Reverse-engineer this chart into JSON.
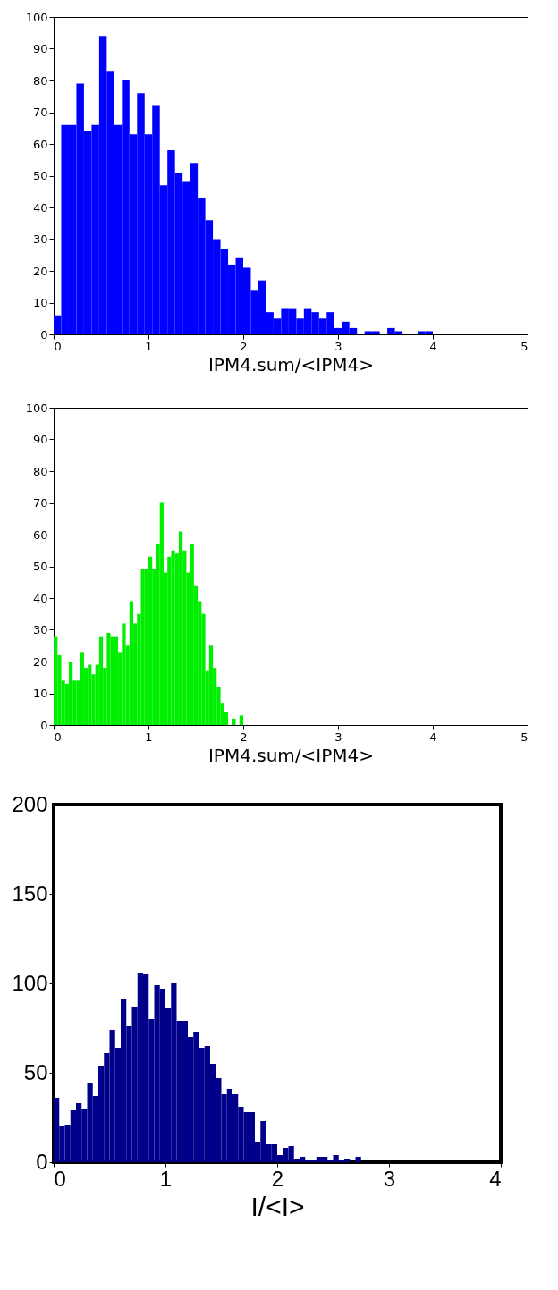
{
  "chart_data": [
    {
      "type": "histogram",
      "xlabel": "IPM4.sum/<IPM4>",
      "color": "#0000ff",
      "bins": [
        0,
        0.08,
        0.16,
        0.24,
        0.32,
        0.4,
        0.48,
        0.56,
        0.64,
        0.72,
        0.8,
        0.88,
        0.96,
        1.04,
        1.12,
        1.2,
        1.28,
        1.36,
        1.44,
        1.52,
        1.6,
        1.68,
        1.76,
        1.84,
        1.92,
        2.0,
        2.08,
        2.16,
        2.24,
        2.32,
        2.4,
        2.48,
        2.56,
        2.64,
        2.72,
        2.8,
        2.88,
        2.96,
        3.04,
        3.12,
        3.2,
        3.28,
        3.36,
        3.44,
        3.52,
        3.6,
        3.68,
        3.76,
        3.84,
        3.92,
        4.0
      ],
      "values": [
        6,
        66,
        66,
        79,
        64,
        66,
        94,
        83,
        66,
        80,
        63,
        76,
        63,
        72,
        47,
        58,
        51,
        48,
        54,
        43,
        36,
        30,
        27,
        22,
        24,
        21,
        14,
        17,
        7,
        5,
        8,
        8,
        5,
        8,
        7,
        5,
        7,
        2,
        4,
        2,
        0,
        1,
        1,
        0,
        2,
        1,
        0,
        0,
        1,
        1
      ],
      "xlim": [
        0,
        5
      ],
      "xticks": [
        0,
        1,
        2,
        3,
        4,
        5
      ],
      "ylim": [
        0,
        100
      ],
      "yticks": [
        0,
        10,
        20,
        30,
        40,
        50,
        60,
        70,
        80,
        90,
        100
      ],
      "grid": false
    },
    {
      "type": "histogram",
      "xlabel": "IPM4.sum/<IPM4>",
      "color": "#00ee00",
      "bins": [
        0,
        0.04,
        0.08,
        0.12,
        0.16,
        0.2,
        0.24,
        0.28,
        0.32,
        0.36,
        0.4,
        0.44,
        0.48,
        0.52,
        0.56,
        0.6,
        0.64,
        0.68,
        0.72,
        0.76,
        0.8,
        0.84,
        0.88,
        0.92,
        0.96,
        1.0,
        1.04,
        1.08,
        1.12,
        1.16,
        1.2,
        1.24,
        1.28,
        1.32,
        1.36,
        1.4,
        1.44,
        1.48,
        1.52,
        1.56,
        1.6,
        1.64,
        1.68,
        1.72,
        1.76,
        1.8,
        1.84,
        1.88,
        1.92,
        1.96,
        2.0
      ],
      "values": [
        28,
        22,
        14,
        13,
        20,
        14,
        14,
        23,
        18,
        19,
        16,
        19,
        28,
        18,
        29,
        28,
        28,
        23,
        32,
        25,
        39,
        32,
        35,
        49,
        49,
        53,
        49,
        57,
        70,
        48,
        53,
        55,
        54,
        61,
        55,
        48,
        57,
        44,
        39,
        35,
        17,
        25,
        18,
        12,
        7,
        4,
        0,
        2,
        0,
        3
      ],
      "xlim": [
        0,
        5
      ],
      "xticks": [
        0,
        1,
        2,
        3,
        4,
        5
      ],
      "ylim": [
        0,
        100
      ],
      "yticks": [
        0,
        10,
        20,
        30,
        40,
        50,
        60,
        70,
        80,
        90,
        100
      ],
      "grid": false
    },
    {
      "type": "histogram",
      "xlabel": "I/<I>",
      "color": "#00008b",
      "bins": [
        0,
        0.05,
        0.1,
        0.15,
        0.2,
        0.25,
        0.3,
        0.35,
        0.4,
        0.45,
        0.5,
        0.55,
        0.6,
        0.65,
        0.7,
        0.75,
        0.8,
        0.85,
        0.9,
        0.95,
        1.0,
        1.05,
        1.1,
        1.15,
        1.2,
        1.25,
        1.3,
        1.35,
        1.4,
        1.45,
        1.5,
        1.55,
        1.6,
        1.65,
        1.7,
        1.75,
        1.8,
        1.85,
        1.9,
        1.95,
        2.0,
        2.05,
        2.1,
        2.15,
        2.2,
        2.25,
        2.3,
        2.35,
        2.4,
        2.45,
        2.5,
        2.55,
        2.6,
        2.65,
        2.7,
        2.75
      ],
      "values": [
        36,
        20,
        21,
        29,
        33,
        30,
        44,
        37,
        54,
        61,
        74,
        64,
        91,
        76,
        87,
        106,
        105,
        80,
        99,
        97,
        86,
        100,
        79,
        79,
        70,
        73,
        64,
        65,
        55,
        47,
        38,
        41,
        38,
        31,
        28,
        28,
        11,
        23,
        10,
        10,
        4,
        8,
        9,
        2,
        3,
        1,
        1,
        3,
        3,
        1,
        4,
        1,
        2,
        0,
        3
      ],
      "xlim": [
        0,
        4
      ],
      "xticks": [
        0,
        1,
        2,
        3,
        4
      ],
      "ylim": [
        0,
        200
      ],
      "yticks": [
        0,
        50,
        100,
        150,
        200
      ],
      "grid": false
    }
  ]
}
